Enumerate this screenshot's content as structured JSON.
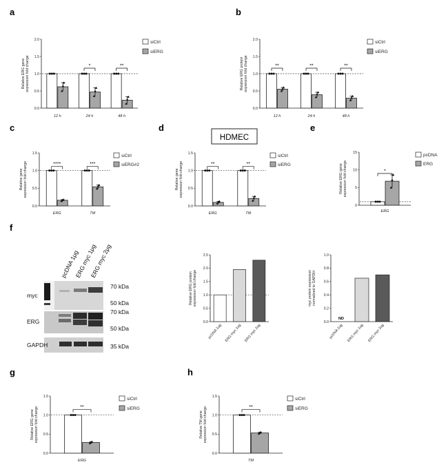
{
  "panels": {
    "a": {
      "letter": "a",
      "ylabel_lines": [
        "Relative ERG gene",
        "expression fold change"
      ],
      "yticks": [
        "0.0",
        "0.5",
        "1.0",
        "1.5",
        "2.0"
      ],
      "ymax": 2.0,
      "legend": [
        "siCtrl",
        "siERG"
      ],
      "categories": [
        "12 h",
        "24 h",
        "48 h"
      ],
      "significance": [
        "",
        "*",
        "**"
      ]
    },
    "b": {
      "letter": "b",
      "ylabel_lines": [
        "Relative ERG protein",
        "expression fold change"
      ],
      "yticks": [
        "0.0",
        "0.5",
        "1.0",
        "1.5",
        "2.0"
      ],
      "ymax": 2.0,
      "legend": [
        "siCtrl",
        "siERG"
      ],
      "categories": [
        "12 h",
        "24 h",
        "48 h"
      ],
      "significance": [
        "**",
        "**",
        "**"
      ]
    },
    "c": {
      "letter": "c",
      "ylabel_lines": [
        "Relative gene",
        "expression fold change"
      ],
      "yticks": [
        "0.0",
        "0.5",
        "1.0",
        "1.5"
      ],
      "ymax": 1.5,
      "legend": [
        "siCtrl",
        "siERG#2"
      ],
      "categories": [
        "ERG",
        "TM"
      ],
      "significance": [
        "****",
        "***"
      ]
    },
    "d": {
      "letter": "d",
      "title": "HDMEC",
      "ylabel_lines": [
        "Relative gene",
        "expression fold change"
      ],
      "yticks": [
        "0.0",
        "0.5",
        "1.0",
        "1.5"
      ],
      "ymax": 1.5,
      "legend": [
        "siCtrl",
        "siERG"
      ],
      "categories": [
        "ERG",
        "TM"
      ],
      "significance": [
        "**",
        "**"
      ]
    },
    "e": {
      "letter": "e",
      "ylabel_lines": [
        "Relative ERG gene",
        "expression fold change"
      ],
      "yticks": [
        "0",
        "5",
        "10",
        "15"
      ],
      "ymax": 15,
      "legend": [
        "pcDNA",
        "ERG"
      ],
      "categories": [
        "ERG"
      ],
      "significance": [
        "*"
      ]
    },
    "f": {
      "letter": "f",
      "lanes": [
        "pcDNA 1μg",
        "ERG myc 1μg",
        "ERG myc 2μg"
      ],
      "rows": [
        "myc",
        "ERG",
        "GAPDH"
      ],
      "markers": [
        "70 kDa",
        "50 kDa",
        "70 kDa",
        "50 kDa",
        "35 kDa"
      ],
      "protein_chart": {
        "ylabel_lines": [
          "Relative ERG protein",
          "expression fold change"
        ],
        "yticks": [
          "0.0",
          "0.5",
          "1.0",
          "1.5",
          "2.0",
          "2.5"
        ],
        "ymax": 2.5,
        "categories": [
          "pcDNA 1ug",
          "ERG myc 1ug",
          "ERG myc 2ug"
        ]
      },
      "myc_chart": {
        "ylabel_lines": [
          "myc protein expression",
          "normalized to GAPDH"
        ],
        "yticks": [
          "0.0",
          "0.2",
          "0.4",
          "0.6",
          "0.8",
          "1.0"
        ],
        "ymax": 1.0,
        "categories": [
          "pcDNA 1ug",
          "ERG myc 1ug",
          "ERG myc 2ug"
        ],
        "nd_label": "ND"
      }
    },
    "g": {
      "letter": "g",
      "ylabel_lines": [
        "Relative ERG gene",
        "expression fold change"
      ],
      "yticks": [
        "0.0",
        "0.5",
        "1.0",
        "1.5"
      ],
      "ymax": 1.5,
      "legend": [
        "siCtrl",
        "siERG"
      ],
      "categories": [
        "ERG"
      ],
      "significance": [
        "**"
      ]
    },
    "h": {
      "letter": "h",
      "ylabel_lines": [
        "Relative TM gene",
        "expression fold change"
      ],
      "yticks": [
        "0.0",
        "0.5",
        "1.0",
        "1.5"
      ],
      "ymax": 1.5,
      "legend": [
        "siCtrl",
        "siERG"
      ],
      "categories": [
        "TM"
      ],
      "significance": [
        "**"
      ]
    }
  },
  "colors": {
    "control_fill": "#ffffff",
    "treatment_fill": "#a6a6a6",
    "light_bar": "#d9d9d9",
    "dark_bar": "#5a5a5a",
    "axis": "#222222"
  },
  "chart_data": [
    {
      "id": "a",
      "type": "bar",
      "categories": [
        "12 h",
        "24 h",
        "48 h"
      ],
      "series": [
        {
          "name": "siCtrl",
          "values": [
            1.0,
            1.0,
            1.0
          ],
          "errors": [
            0.0,
            0.0,
            0.0
          ]
        },
        {
          "name": "siERG",
          "values": [
            0.62,
            0.47,
            0.23
          ],
          "errors": [
            0.12,
            0.12,
            0.1
          ]
        }
      ],
      "ylim": [
        0,
        2.0
      ],
      "reference_line": 1.0
    },
    {
      "id": "b",
      "type": "bar",
      "categories": [
        "12 h",
        "24 h",
        "48 h"
      ],
      "series": [
        {
          "name": "siCtrl",
          "values": [
            1.0,
            1.0,
            1.0
          ],
          "errors": [
            0.0,
            0.0,
            0.0
          ]
        },
        {
          "name": "siERG",
          "values": [
            0.55,
            0.39,
            0.29
          ],
          "errors": [
            0.05,
            0.07,
            0.06
          ]
        }
      ],
      "ylim": [
        0,
        2.0
      ],
      "reference_line": 1.0
    },
    {
      "id": "c",
      "type": "bar",
      "categories": [
        "ERG",
        "TM"
      ],
      "series": [
        {
          "name": "siCtrl",
          "values": [
            1.0,
            1.0
          ],
          "errors": [
            0.0,
            0.0
          ]
        },
        {
          "name": "siERG#2",
          "values": [
            0.16,
            0.54
          ],
          "errors": [
            0.02,
            0.05
          ]
        }
      ],
      "ylim": [
        0,
        1.5
      ],
      "reference_line": 1.0
    },
    {
      "id": "d",
      "type": "bar",
      "categories": [
        "ERG",
        "TM"
      ],
      "series": [
        {
          "name": "siCtrl",
          "values": [
            1.0,
            1.0
          ],
          "errors": [
            0.0,
            0.0
          ]
        },
        {
          "name": "siERG",
          "values": [
            0.1,
            0.21
          ],
          "errors": [
            0.03,
            0.06
          ]
        }
      ],
      "ylim": [
        0,
        1.5
      ],
      "reference_line": 1.0
    },
    {
      "id": "e",
      "type": "bar",
      "categories": [
        "ERG"
      ],
      "series": [
        {
          "name": "pcDNA",
          "values": [
            1.0
          ],
          "errors": [
            0.1
          ]
        },
        {
          "name": "ERG",
          "values": [
            6.8
          ],
          "errors": [
            1.8
          ]
        }
      ],
      "ylim": [
        0,
        15
      ],
      "reference_line": 1.0
    },
    {
      "id": "f-protein",
      "type": "bar",
      "categories": [
        "pcDNA 1ug",
        "ERG myc 1ug",
        "ERG myc 2ug"
      ],
      "values": [
        1.0,
        1.95,
        2.3
      ],
      "ylim": [
        0,
        2.5
      ],
      "reference_line": 1.0
    },
    {
      "id": "f-myc",
      "type": "bar",
      "categories": [
        "pcDNA 1ug",
        "ERG myc 1ug",
        "ERG myc 2ug"
      ],
      "values": [
        0.0,
        0.65,
        0.7
      ],
      "ylim": [
        0,
        1.0
      ]
    },
    {
      "id": "g",
      "type": "bar",
      "categories": [
        "ERG"
      ],
      "series": [
        {
          "name": "siCtrl",
          "values": [
            1.0
          ],
          "errors": [
            0.0
          ]
        },
        {
          "name": "siERG",
          "values": [
            0.28
          ],
          "errors": [
            0.02
          ]
        }
      ],
      "ylim": [
        0,
        1.5
      ],
      "reference_line": 1.0
    },
    {
      "id": "h",
      "type": "bar",
      "categories": [
        "TM"
      ],
      "series": [
        {
          "name": "siCtrl",
          "values": [
            1.0
          ],
          "errors": [
            0.0
          ]
        },
        {
          "name": "siERG",
          "values": [
            0.53
          ],
          "errors": [
            0.02
          ]
        }
      ],
      "ylim": [
        0,
        1.5
      ],
      "reference_line": 1.0
    }
  ]
}
